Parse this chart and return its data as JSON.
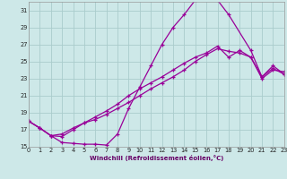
{
  "xlabel": "Windchill (Refroidissement éolien,°C)",
  "background_color": "#cde8e8",
  "grid_color": "#aacccc",
  "line_color": "#990099",
  "xlim": [
    0,
    23
  ],
  "ylim": [
    15,
    32
  ],
  "yticks": [
    15,
    17,
    19,
    21,
    23,
    25,
    27,
    29,
    31
  ],
  "xticks": [
    0,
    1,
    2,
    3,
    4,
    5,
    6,
    7,
    8,
    9,
    10,
    11,
    12,
    13,
    14,
    15,
    16,
    17,
    18,
    19,
    20,
    21,
    22,
    23
  ],
  "curve1_x": [
    0,
    1,
    2,
    3,
    4,
    5,
    6,
    7,
    8,
    9,
    10,
    11,
    12,
    13,
    14,
    15,
    16,
    17,
    18,
    20,
    21,
    22,
    23
  ],
  "curve1_y": [
    18.0,
    17.2,
    16.3,
    15.5,
    15.4,
    15.3,
    15.3,
    15.2,
    16.5,
    19.5,
    22.0,
    24.5,
    27.0,
    29.0,
    30.5,
    32.2,
    32.5,
    32.2,
    30.5,
    26.3,
    23.2,
    24.5,
    23.5
  ],
  "curve2_x": [
    0,
    1,
    2,
    3,
    4,
    5,
    6,
    7,
    8,
    9,
    10,
    11,
    12,
    13,
    14,
    15,
    16,
    17,
    18,
    19,
    20,
    21,
    22,
    23
  ],
  "curve2_y": [
    18.0,
    17.2,
    16.3,
    16.2,
    17.0,
    17.8,
    18.5,
    19.2,
    20.0,
    21.0,
    21.8,
    22.5,
    23.2,
    24.0,
    24.8,
    25.5,
    26.0,
    26.8,
    25.5,
    26.3,
    25.5,
    23.2,
    24.2,
    23.5
  ],
  "curve3_x": [
    0,
    1,
    2,
    3,
    4,
    5,
    6,
    7,
    8,
    9,
    10,
    11,
    12,
    13,
    14,
    15,
    16,
    17,
    18,
    19,
    20,
    21,
    22,
    23
  ],
  "curve3_y": [
    18.0,
    17.2,
    16.3,
    16.5,
    17.2,
    17.8,
    18.2,
    18.8,
    19.5,
    20.2,
    21.0,
    21.8,
    22.5,
    23.2,
    24.0,
    25.0,
    25.8,
    26.5,
    26.2,
    26.0,
    25.5,
    23.0,
    24.0,
    23.8
  ]
}
